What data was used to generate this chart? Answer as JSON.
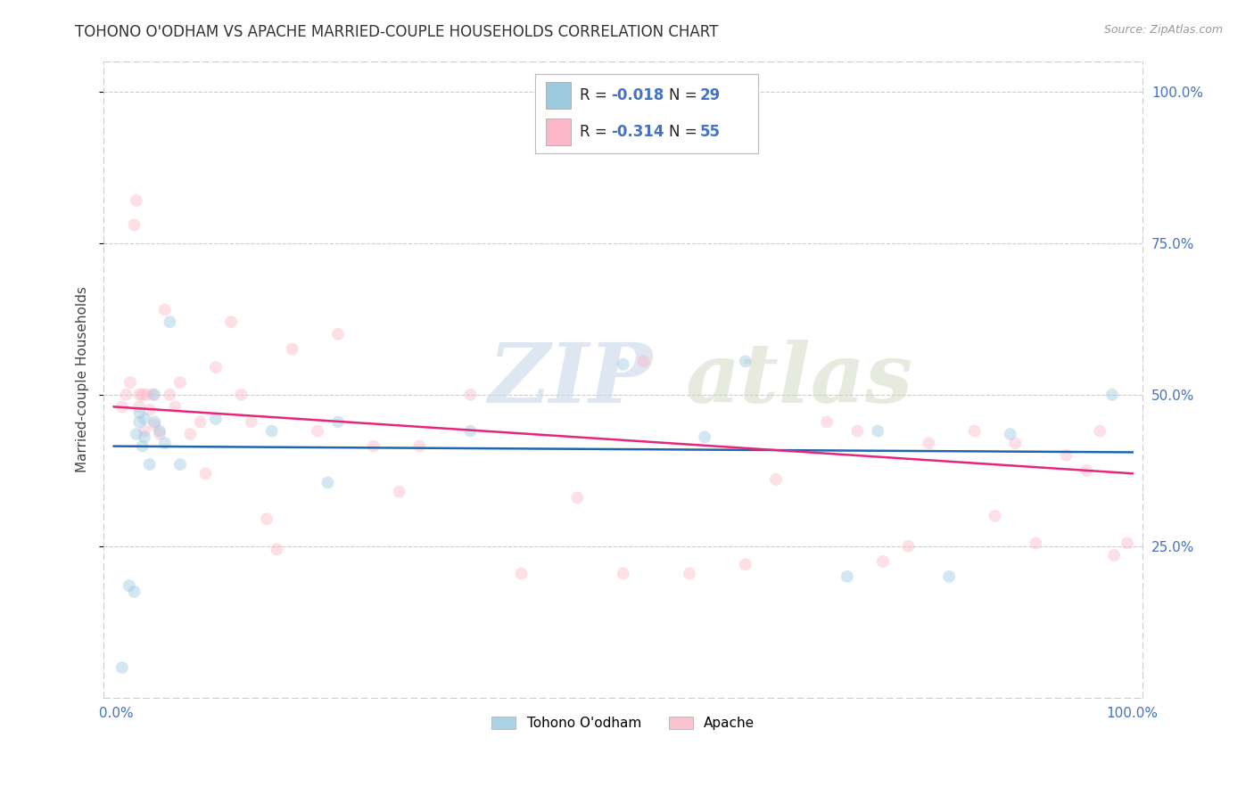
{
  "title": "TOHONO O'ODHAM VS APACHE MARRIED-COUPLE HOUSEHOLDS CORRELATION CHART",
  "source": "Source: ZipAtlas.com",
  "ylabel": "Married-couple Households",
  "watermark_zip": "ZIP",
  "watermark_atlas": "atlas",
  "blue_color": "#9ecae1",
  "pink_color": "#fcb8c8",
  "blue_line_color": "#2166ac",
  "pink_line_color": "#e8257d",
  "tick_color": "#4472c4",
  "grid_color": "#cccccc",
  "background_color": "#ffffff",
  "tohono_x": [
    0.008,
    0.015,
    0.02,
    0.022,
    0.025,
    0.025,
    0.028,
    0.03,
    0.03,
    0.035,
    0.04,
    0.04,
    0.045,
    0.05,
    0.055,
    0.065,
    0.1,
    0.155,
    0.21,
    0.22,
    0.35,
    0.5,
    0.58,
    0.62,
    0.72,
    0.75,
    0.82,
    0.88,
    0.98
  ],
  "tohono_y": [
    0.05,
    0.185,
    0.175,
    0.435,
    0.455,
    0.47,
    0.415,
    0.43,
    0.46,
    0.385,
    0.5,
    0.455,
    0.44,
    0.42,
    0.62,
    0.385,
    0.46,
    0.44,
    0.355,
    0.455,
    0.44,
    0.55,
    0.43,
    0.555,
    0.2,
    0.44,
    0.2,
    0.435,
    0.5
  ],
  "apache_x": [
    0.008,
    0.012,
    0.016,
    0.02,
    0.022,
    0.025,
    0.025,
    0.028,
    0.03,
    0.032,
    0.035,
    0.038,
    0.04,
    0.045,
    0.05,
    0.055,
    0.06,
    0.065,
    0.075,
    0.085,
    0.09,
    0.1,
    0.115,
    0.125,
    0.135,
    0.15,
    0.16,
    0.175,
    0.2,
    0.22,
    0.255,
    0.28,
    0.3,
    0.35,
    0.4,
    0.455,
    0.5,
    0.52,
    0.565,
    0.62,
    0.65,
    0.7,
    0.73,
    0.755,
    0.78,
    0.8,
    0.845,
    0.865,
    0.885,
    0.905,
    0.935,
    0.955,
    0.968,
    0.982,
    0.995
  ],
  "apache_y": [
    0.48,
    0.5,
    0.52,
    0.78,
    0.82,
    0.48,
    0.5,
    0.5,
    0.44,
    0.5,
    0.475,
    0.5,
    0.45,
    0.435,
    0.64,
    0.5,
    0.48,
    0.52,
    0.435,
    0.455,
    0.37,
    0.545,
    0.62,
    0.5,
    0.455,
    0.295,
    0.245,
    0.575,
    0.44,
    0.6,
    0.415,
    0.34,
    0.415,
    0.5,
    0.205,
    0.33,
    0.205,
    0.555,
    0.205,
    0.22,
    0.36,
    0.455,
    0.44,
    0.225,
    0.25,
    0.42,
    0.44,
    0.3,
    0.42,
    0.255,
    0.4,
    0.375,
    0.44,
    0.235,
    0.255
  ],
  "blue_line_x": [
    0.0,
    1.0
  ],
  "blue_line_y": [
    0.415,
    0.405
  ],
  "pink_line_x": [
    0.0,
    1.0
  ],
  "pink_line_y": [
    0.48,
    0.37
  ],
  "xlim": [
    -0.01,
    1.01
  ],
  "ylim": [
    0.0,
    1.05
  ],
  "yticks": [
    0.25,
    0.5,
    0.75,
    1.0
  ],
  "ytick_labels": [
    "25.0%",
    "50.0%",
    "75.0%",
    "100.0%"
  ],
  "marker_size": 100,
  "marker_alpha": 0.45,
  "line_width": 1.8,
  "title_fontsize": 12,
  "label_fontsize": 11,
  "tick_fontsize": 11
}
